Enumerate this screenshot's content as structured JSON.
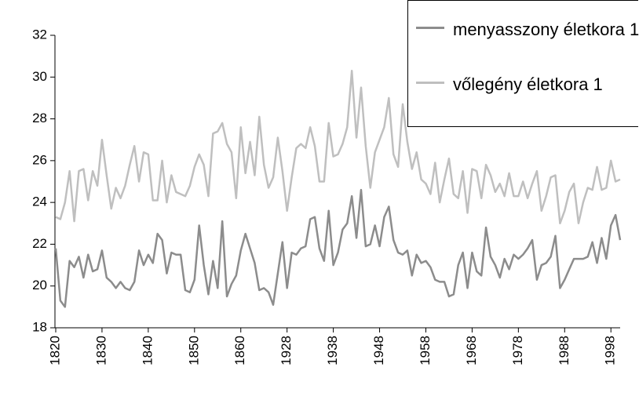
{
  "chart_data": {
    "type": "line",
    "categories": [
      "1820",
      null,
      null,
      null,
      null,
      null,
      null,
      null,
      null,
      null,
      "1830",
      null,
      null,
      null,
      null,
      null,
      null,
      null,
      null,
      null,
      "1840",
      null,
      null,
      null,
      null,
      null,
      null,
      null,
      null,
      null,
      "1850",
      null,
      null,
      null,
      null,
      null,
      null,
      null,
      null,
      null,
      "1860",
      null,
      null,
      null,
      null,
      null,
      null,
      null,
      null,
      null,
      "1928",
      null,
      null,
      null,
      null,
      null,
      null,
      null,
      null,
      null,
      "1938",
      null,
      null,
      null,
      null,
      null,
      null,
      null,
      null,
      null,
      "1948",
      null,
      null,
      null,
      null,
      null,
      null,
      null,
      null,
      null,
      "1958",
      null,
      null,
      null,
      null,
      null,
      null,
      null,
      null,
      null,
      "1968",
      null,
      null,
      null,
      null,
      null,
      null,
      null,
      null,
      null,
      "1978",
      null,
      null,
      null,
      null,
      null,
      null,
      null,
      null,
      null,
      "1988",
      null,
      null,
      null,
      null,
      null,
      null,
      null,
      null,
      null,
      "1998",
      null,
      null
    ],
    "series": [
      {
        "name": "menyasszony életkora 1",
        "color": "#8c8c8c",
        "values": [
          21.8,
          19.3,
          19.0,
          21.2,
          20.9,
          21.4,
          20.4,
          21.5,
          20.7,
          20.8,
          21.7,
          20.4,
          20.2,
          19.9,
          20.2,
          19.9,
          19.8,
          20.2,
          21.7,
          21.0,
          21.5,
          21.1,
          22.5,
          22.2,
          20.6,
          21.6,
          21.5,
          21.5,
          19.8,
          19.7,
          20.3,
          22.9,
          21.0,
          19.6,
          21.2,
          19.9,
          23.1,
          19.5,
          20.1,
          20.5,
          21.7,
          22.5,
          21.8,
          21.1,
          19.8,
          19.9,
          19.7,
          19.1,
          20.6,
          22.1,
          19.9,
          21.6,
          21.5,
          21.8,
          21.9,
          23.2,
          23.3,
          21.8,
          21.2,
          23.6,
          21.0,
          21.6,
          22.7,
          23.0,
          24.3,
          22.3,
          24.6,
          21.9,
          22.0,
          22.9,
          21.9,
          23.3,
          23.8,
          22.2,
          21.6,
          21.5,
          21.7,
          20.5,
          21.5,
          21.1,
          21.2,
          20.9,
          20.3,
          20.2,
          20.2,
          19.5,
          19.6,
          21.0,
          21.6,
          19.9,
          21.6,
          20.7,
          20.5,
          22.8,
          21.4,
          21.0,
          20.4,
          21.3,
          20.8,
          21.5,
          21.3,
          21.5,
          21.8,
          22.2,
          20.3,
          21.0,
          21.1,
          21.4,
          22.4,
          19.9,
          20.3,
          20.8,
          21.3,
          21.3,
          21.3,
          21.4,
          22.1,
          21.1,
          22.3,
          21.3,
          22.9,
          23.4,
          22.2
        ]
      },
      {
        "name": "vőlegény életkora 1",
        "color": "#bfbfbf",
        "values": [
          23.3,
          23.2,
          24.0,
          25.5,
          23.1,
          25.5,
          25.6,
          24.1,
          25.5,
          24.8,
          27.0,
          25.3,
          23.7,
          24.7,
          24.2,
          24.8,
          25.8,
          26.7,
          25.0,
          26.4,
          26.3,
          24.1,
          24.1,
          26.0,
          24.0,
          25.3,
          24.5,
          24.4,
          24.3,
          24.8,
          25.7,
          26.3,
          25.8,
          24.3,
          27.3,
          27.4,
          27.8,
          26.8,
          26.4,
          24.2,
          27.6,
          25.4,
          26.9,
          25.3,
          28.1,
          25.8,
          24.7,
          25.2,
          27.1,
          25.5,
          23.6,
          25.2,
          26.6,
          26.8,
          26.6,
          27.6,
          26.7,
          25.0,
          25.0,
          27.8,
          26.2,
          26.3,
          26.8,
          27.6,
          30.3,
          27.1,
          29.5,
          26.7,
          24.7,
          26.4,
          27.0,
          27.6,
          29.0,
          26.3,
          25.7,
          28.7,
          26.9,
          25.6,
          26.4,
          25.1,
          24.9,
          24.4,
          25.9,
          24.0,
          25.1,
          26.1,
          24.4,
          24.2,
          25.5,
          23.5,
          25.6,
          25.5,
          24.2,
          25.8,
          25.3,
          24.5,
          24.9,
          24.3,
          25.4,
          24.3,
          24.3,
          25.0,
          24.2,
          24.9,
          25.5,
          23.6,
          24.3,
          25.2,
          25.3,
          23.0,
          23.6,
          24.5,
          24.9,
          23.0,
          24.0,
          24.7,
          24.6,
          25.7,
          24.6,
          24.7,
          26.0,
          25.0,
          25.1
        ]
      }
    ],
    "ylim": [
      18,
      32
    ],
    "yticks": [
      18,
      20,
      22,
      24,
      26,
      28,
      30,
      32
    ]
  }
}
